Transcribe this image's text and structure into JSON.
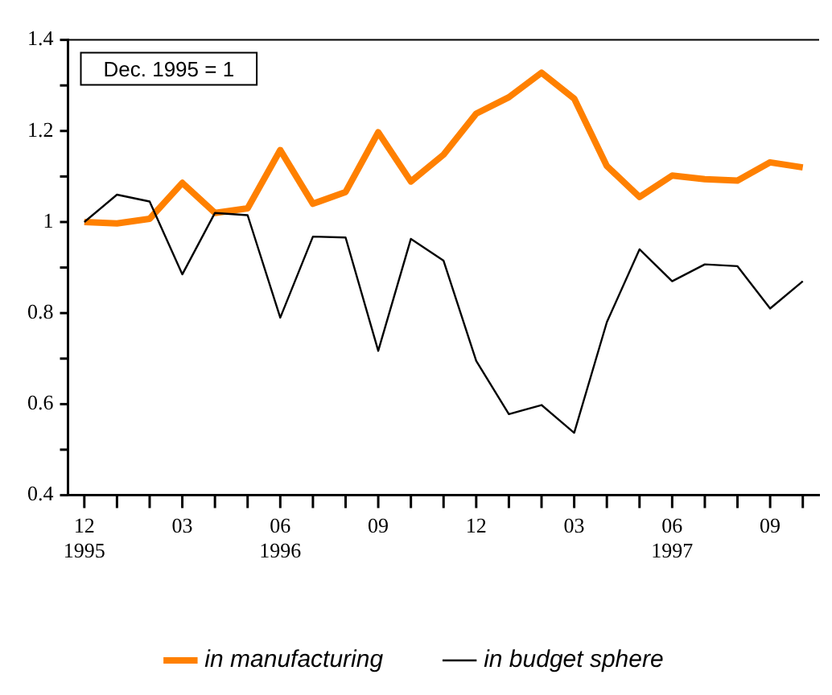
{
  "chart_data": {
    "type": "line",
    "annotations": [
      "Dec. 1995 = 1"
    ],
    "x": [
      "1995-12",
      "1996-01",
      "1996-02",
      "1996-03",
      "1996-04",
      "1996-05",
      "1996-06",
      "1996-07",
      "1996-08",
      "1996-09",
      "1996-10",
      "1996-11",
      "1996-12",
      "1997-01",
      "1997-02",
      "1997-03",
      "1997-04",
      "1997-05",
      "1997-06",
      "1997-07",
      "1997-08",
      "1997-09",
      "1997-10"
    ],
    "series": [
      {
        "name": "in manufacturing",
        "color": "#ff8000",
        "values": [
          1.0,
          0.997,
          1.007,
          1.086,
          1.02,
          1.03,
          1.158,
          1.04,
          1.066,
          1.197,
          1.089,
          1.148,
          1.238,
          1.274,
          1.328,
          1.271,
          1.123,
          1.055,
          1.102,
          1.094,
          1.091,
          1.131,
          1.12
        ]
      },
      {
        "name": "in budget sphere",
        "color": "#000000",
        "values": [
          1.0,
          1.06,
          1.045,
          0.885,
          1.02,
          1.015,
          0.79,
          0.968,
          0.966,
          0.717,
          0.963,
          0.915,
          0.695,
          0.578,
          0.598,
          0.537,
          0.78,
          0.94,
          0.87,
          0.907,
          0.903,
          0.81,
          0.87
        ]
      }
    ],
    "xlim": [
      "1995-11-16",
      "1997-10-16"
    ],
    "xticks": [
      {
        "value": "1995-12",
        "label": "12\n1995"
      },
      {
        "value": "1996-01",
        "label": null
      },
      {
        "value": "1996-02",
        "label": null
      },
      {
        "value": "1996-03",
        "label": "03"
      },
      {
        "value": "1996-04",
        "label": null
      },
      {
        "value": "1996-05",
        "label": null
      },
      {
        "value": "1996-06",
        "label": "06\n1996"
      },
      {
        "value": "1996-07",
        "label": null
      },
      {
        "value": "1996-08",
        "label": null
      },
      {
        "value": "1996-09",
        "label": "09"
      },
      {
        "value": "1996-10",
        "label": null
      },
      {
        "value": "1996-11",
        "label": null
      },
      {
        "value": "1996-12",
        "label": "12"
      },
      {
        "value": "1997-01",
        "label": null
      },
      {
        "value": "1997-02",
        "label": null
      },
      {
        "value": "1997-03",
        "label": "03"
      },
      {
        "value": "1997-04",
        "label": null
      },
      {
        "value": "1997-05",
        "label": null
      },
      {
        "value": "1997-06",
        "label": "06\n1997"
      },
      {
        "value": "1997-07",
        "label": null
      },
      {
        "value": "1997-08",
        "label": null
      },
      {
        "value": "1997-09",
        "label": "09"
      },
      {
        "value": "1997-10",
        "label": null
      }
    ],
    "ylim": [
      0.4,
      1.4
    ],
    "yticks": [
      0.4,
      {
        "value": 0.5,
        "label": null
      },
      0.6,
      {
        "value": 0.7,
        "label": null
      },
      0.8,
      {
        "value": 0.9,
        "label": null
      },
      1,
      {
        "value": 1.1,
        "label": null
      },
      1.2,
      {
        "value": 1.3,
        "label": null
      },
      1.4
    ],
    "grid": false,
    "legend": "bottom",
    "marker": "none",
    "line_style": "solid"
  }
}
